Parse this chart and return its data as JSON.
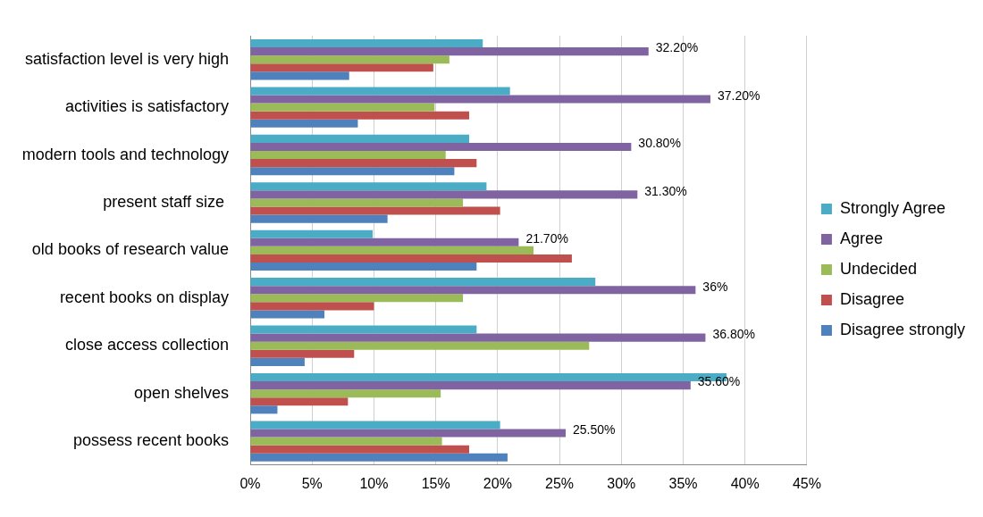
{
  "chart_data": {
    "type": "bar",
    "orientation": "horizontal",
    "categories": [
      "satisfaction level is very high",
      "activities is satisfactory",
      "modern tools and technology",
      "present staff size ",
      "old books of research value",
      "recent books on display",
      "close access collection",
      "open shelves",
      "possess recent books"
    ],
    "series": [
      {
        "name": "Strongly Agree",
        "color": "#4bacc6",
        "values": [
          18.8,
          21.0,
          17.7,
          19.1,
          9.9,
          27.9,
          18.3,
          38.5,
          20.2
        ]
      },
      {
        "name": "Agree",
        "color": "#8064a2",
        "values": [
          32.2,
          37.2,
          30.8,
          31.3,
          21.7,
          36,
          36.8,
          35.6,
          25.5
        ],
        "value_labels": [
          "32.20%",
          "37.20%",
          "30.80%",
          "31.30%",
          "21.70%",
          "36%",
          "36.80%",
          "35.60%",
          "25.50%"
        ]
      },
      {
        "name": "Undecided",
        "color": "#9bbb59",
        "values": [
          16.1,
          14.9,
          15.8,
          17.2,
          22.9,
          17.2,
          27.4,
          15.4,
          15.5
        ]
      },
      {
        "name": "Disagree",
        "color": "#c0504d",
        "values": [
          14.8,
          17.7,
          18.3,
          20.2,
          26.0,
          10.0,
          8.4,
          7.9,
          17.7
        ]
      },
      {
        "name": "Disagree strongly",
        "color": "#4f81bd",
        "values": [
          8.0,
          8.7,
          16.5,
          11.1,
          18.3,
          6.0,
          4.4,
          2.2,
          20.8
        ]
      }
    ],
    "xlim": [
      0,
      45
    ],
    "xticks": [
      {
        "value": 0,
        "label": "0%"
      },
      {
        "value": 5,
        "label": "5%"
      },
      {
        "value": 10,
        "label": "10%"
      },
      {
        "value": 15,
        "label": "15%"
      },
      {
        "value": 20,
        "label": "20%"
      },
      {
        "value": 25,
        "label": "25%"
      },
      {
        "value": 30,
        "label": "30%"
      },
      {
        "value": 35,
        "label": "35%"
      },
      {
        "value": 40,
        "label": "40%"
      },
      {
        "value": 45,
        "label": "45%"
      }
    ],
    "grid": "x",
    "legend": "right"
  }
}
